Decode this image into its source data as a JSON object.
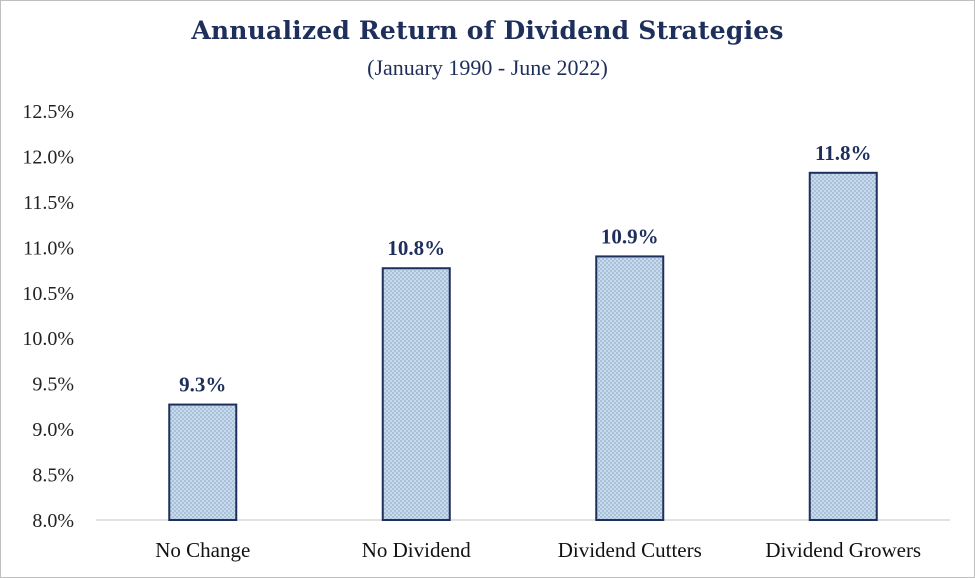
{
  "chart_data": {
    "type": "bar",
    "title": "Annualized Return of Dividend Strategies",
    "subtitle": "(January 1990 - June 2022)",
    "xlabel": "",
    "ylabel": "",
    "categories": [
      "No Change",
      "No Dividend",
      "Dividend Cutters",
      "Dividend Growers"
    ],
    "values": [
      9.27,
      10.77,
      10.9,
      11.82
    ],
    "data_labels": [
      "9.3%",
      "10.8%",
      "10.9%",
      "11.8%"
    ],
    "ylim": [
      8.0,
      12.5
    ],
    "y_ticks": [
      "8.0%",
      "8.5%",
      "9.0%",
      "9.5%",
      "10.0%",
      "10.5%",
      "11.0%",
      "11.5%",
      "12.0%",
      "12.5%"
    ],
    "grid": false,
    "legend": "none",
    "colors": {
      "bar_fill": "#c9daea",
      "bar_pattern": "#8fb0d0",
      "bar_border": "#1f2f5c",
      "title": "#1f2f5c",
      "axis": "#d9d9d9"
    }
  }
}
